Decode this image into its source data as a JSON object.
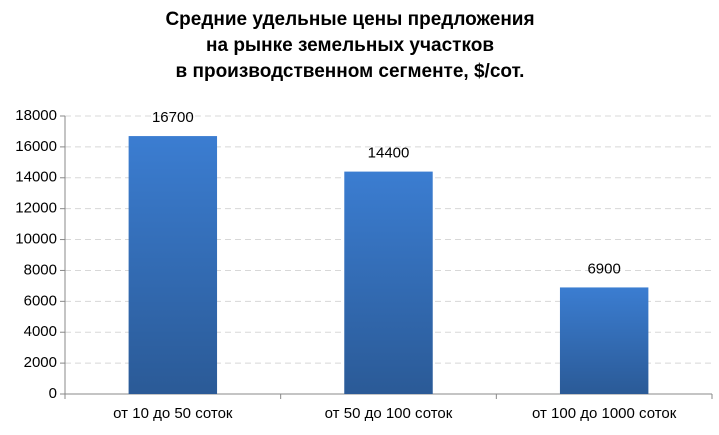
{
  "chart_data": {
    "type": "bar",
    "title": [
      "Средние удельные цены предложения",
      "на рынке земельных участков",
      "в производственном сегменте, $/сот."
    ],
    "categories": [
      "от 10 до 50 соток",
      "от 50 до 100 соток",
      "от 100 до 1000 соток"
    ],
    "values": [
      16700,
      14400,
      6900
    ],
    "color": "#3b7dd1",
    "ylim": [
      0,
      18000
    ],
    "yticks": [
      0,
      2000,
      4000,
      6000,
      8000,
      10000,
      12000,
      14000,
      16000,
      18000
    ],
    "grid": true
  }
}
